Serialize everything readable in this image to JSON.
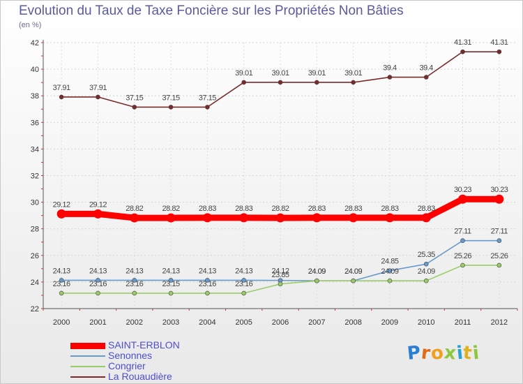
{
  "title": "Evolution du Taux de Taxe Foncière sur les Propriétés Non Bâties",
  "subtitle": "(en %)",
  "chart_data": {
    "type": "line",
    "title": "Evolution du Taux de Taxe Foncière sur les Propriétés Non Bâties",
    "ylabel": "(en %)",
    "xlabel": "",
    "x": [
      "2000",
      "2001",
      "2002",
      "2003",
      "2004",
      "2005",
      "2006",
      "2007",
      "2008",
      "2009",
      "2010",
      "2011",
      "2012"
    ],
    "ylim": [
      22,
      42
    ],
    "yticks": [
      "22",
      "24",
      "26",
      "28",
      "30",
      "32",
      "34",
      "36",
      "38",
      "40",
      "42"
    ],
    "grid": true,
    "series": [
      {
        "name": "SAINT-ERBLON",
        "color": "#ff0000",
        "values": [
          29.12,
          29.12,
          28.82,
          28.82,
          28.83,
          28.83,
          28.82,
          28.83,
          28.83,
          28.83,
          28.83,
          30.23,
          30.23
        ],
        "labels": [
          "29.12",
          "29.12",
          "28.82",
          "28.82",
          "28.83",
          "28.83",
          "28.82",
          "28.83",
          "28.83",
          "28.83",
          "28.83",
          "30.23",
          "30.23"
        ]
      },
      {
        "name": "Senonnes",
        "color": "#6699cc",
        "values": [
          24.13,
          24.13,
          24.13,
          24.13,
          24.13,
          24.13,
          24.12,
          24.09,
          24.09,
          24.85,
          25.35,
          27.11,
          27.11
        ],
        "labels": [
          "24.13",
          "24.13",
          "24.13",
          "24.13",
          "24.13",
          "24.13",
          "24.12",
          "24.09",
          "24.09",
          "24.85",
          "25.35",
          "27.11",
          "27.11"
        ]
      },
      {
        "name": "Congrier",
        "color": "#99cc66",
        "values": [
          23.16,
          23.16,
          23.16,
          23.15,
          23.16,
          23.16,
          23.85,
          24.09,
          24.09,
          24.09,
          24.09,
          25.26,
          25.26
        ],
        "labels": [
          "23.16",
          "23.16",
          "23.16",
          "23.15",
          "23.16",
          "23.16",
          "23.85",
          "24.09",
          "24.09",
          "24.09",
          "24.09",
          "25.26",
          "25.26"
        ]
      },
      {
        "name": "La Rouaudière",
        "color": "#7a2a2a",
        "values": [
          37.91,
          37.91,
          37.15,
          37.15,
          37.15,
          39.01,
          39.01,
          39.01,
          39.01,
          39.4,
          39.4,
          41.31,
          41.31
        ],
        "labels": [
          "37.91",
          "37.91",
          "37.15",
          "37.15",
          "37.15",
          "39.01",
          "39.01",
          "39.01",
          "39.01",
          "39.4",
          "39.4",
          "41.31",
          "41.31"
        ]
      }
    ]
  },
  "logo": {
    "letters": [
      "P",
      "r",
      "o",
      "x",
      "i",
      "t",
      "i"
    ],
    "colors": [
      "#2a7fd4",
      "#e06a1a",
      "#f0a020",
      "#8dc63f",
      "#2a9fd4",
      "#e0b020",
      "#8dc63f"
    ]
  }
}
